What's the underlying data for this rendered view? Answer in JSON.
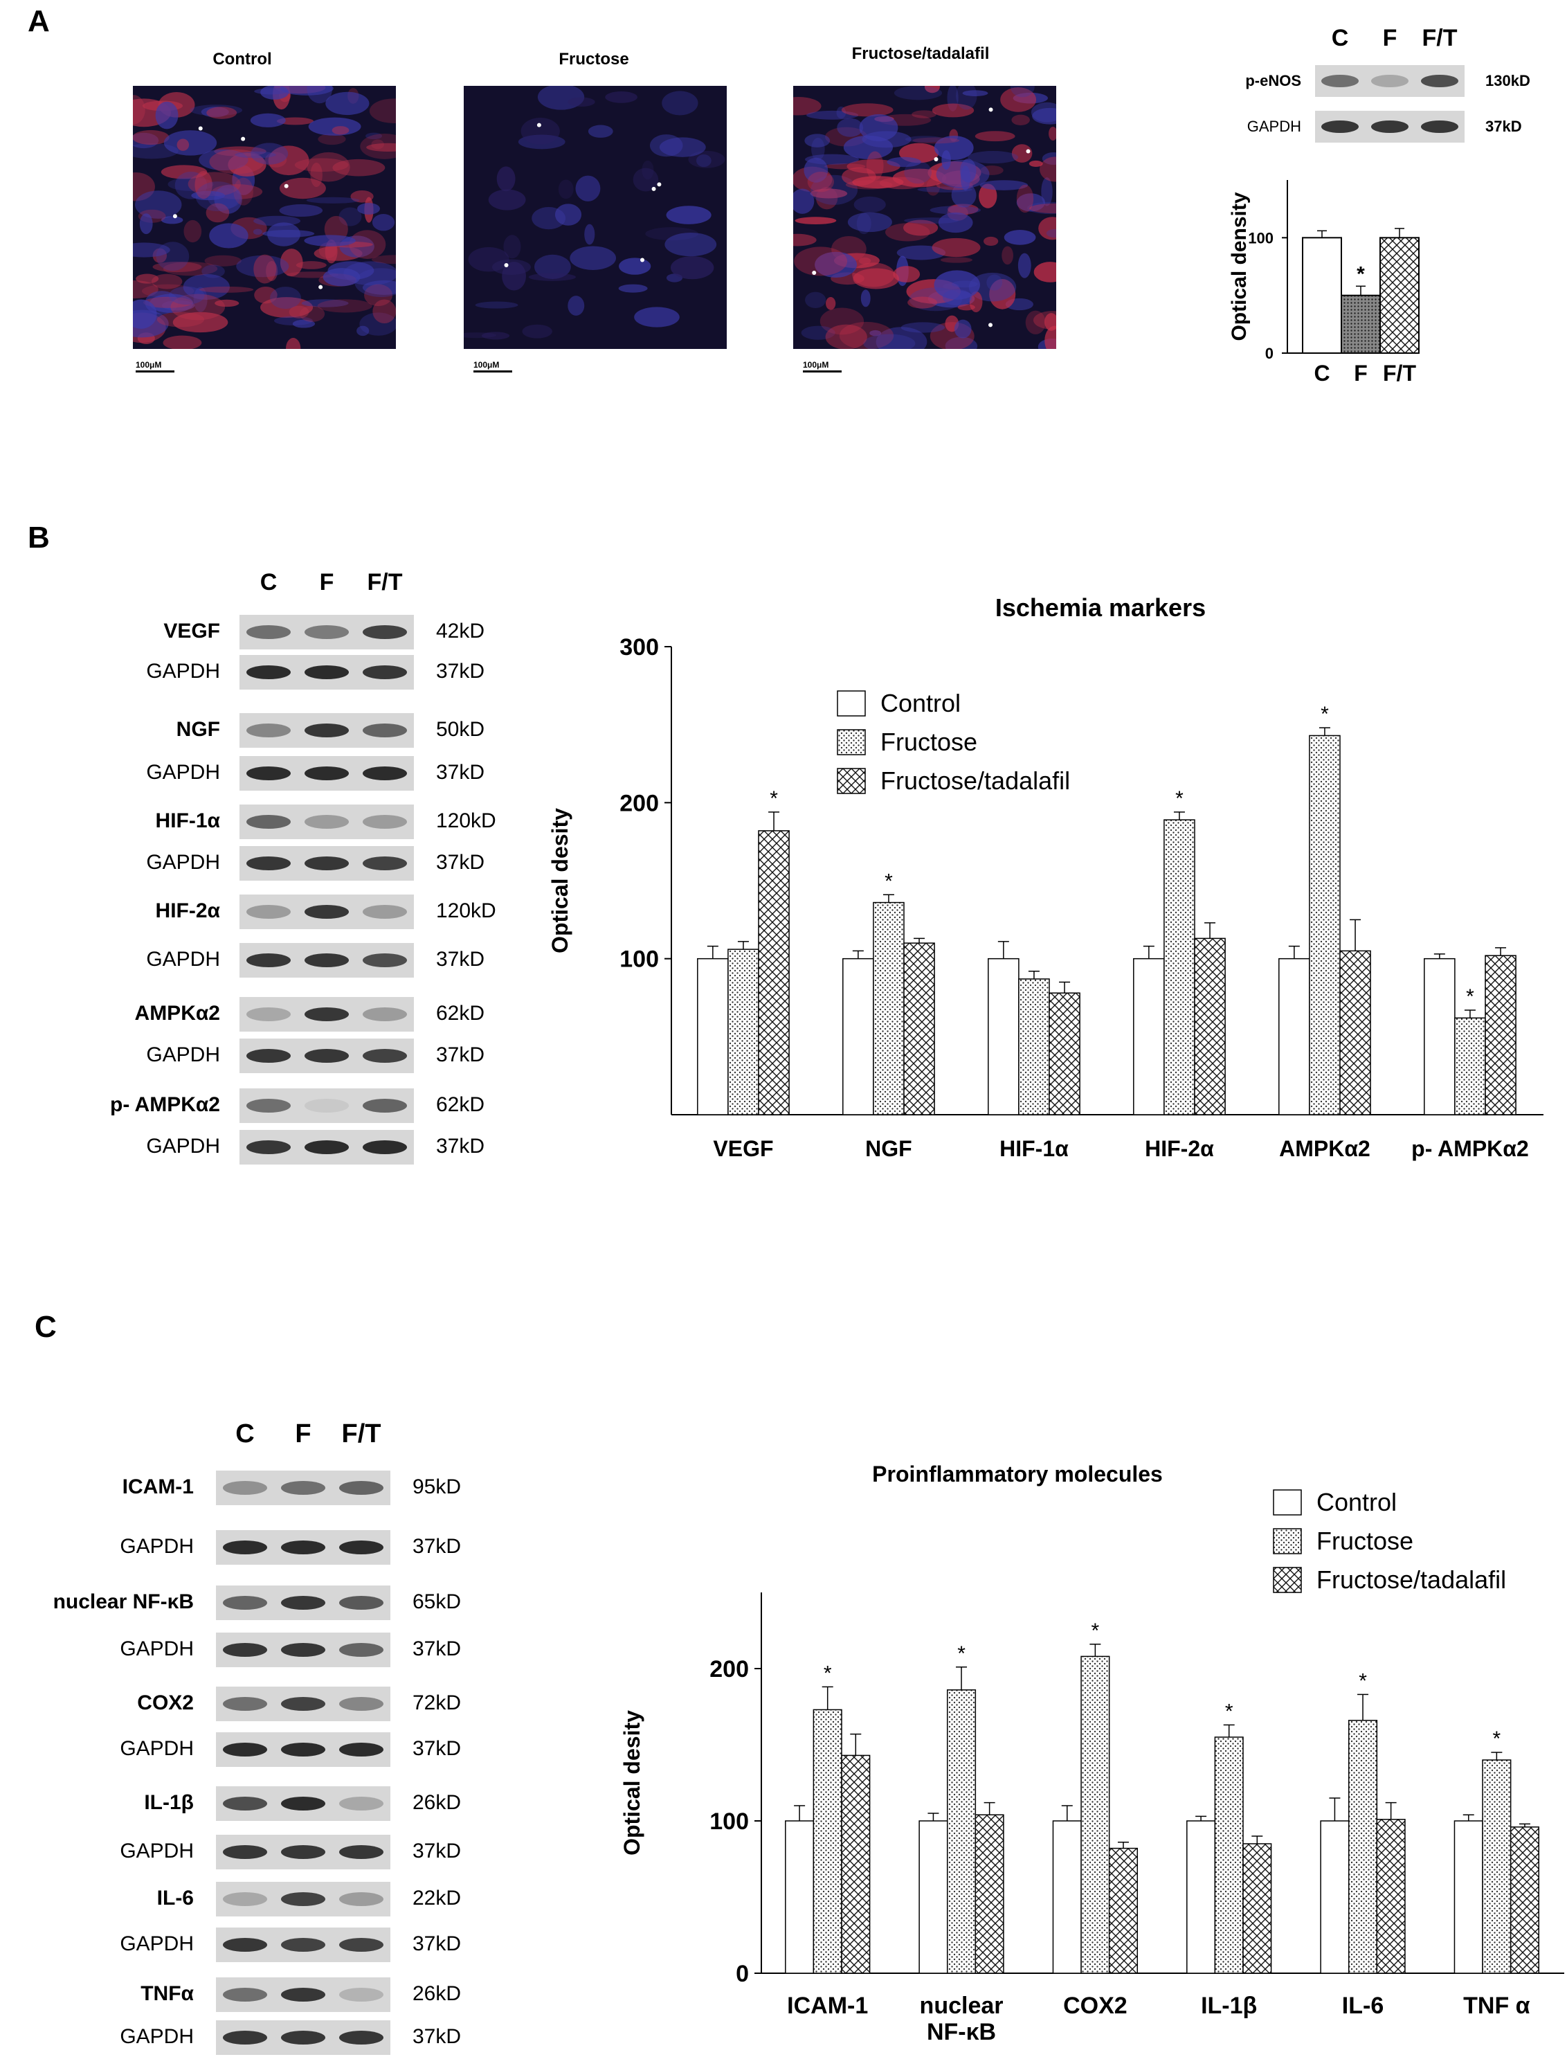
{
  "panel_a": {
    "letter": "A",
    "micrographs": [
      {
        "title": "Control",
        "scale": "100μM",
        "tint": "#b8304a"
      },
      {
        "title": "Fructose",
        "scale": "100μM",
        "tint": "#2a1f60"
      },
      {
        "title": "Fructose/tadalafil",
        "scale": "100μM",
        "tint": "#c8304a"
      }
    ],
    "blot": {
      "lanes": [
        "C",
        "F",
        "F/T"
      ],
      "rows": [
        {
          "label": "p-eNOS",
          "size": "130kD",
          "intensity": [
            0.55,
            0.3,
            0.7
          ]
        },
        {
          "label": "GAPDH",
          "size": "37kD",
          "intensity": [
            0.8,
            0.8,
            0.8
          ]
        }
      ]
    }
  },
  "panel_b": {
    "letter": "B",
    "blot": {
      "lanes": [
        "C",
        "F",
        "F/T"
      ],
      "rows": [
        {
          "label": "VEGF",
          "bold": true,
          "size": "42kD",
          "intensity": [
            0.55,
            0.5,
            0.75
          ]
        },
        {
          "label": "GAPDH",
          "bold": false,
          "size": "37kD",
          "intensity": [
            0.85,
            0.85,
            0.8
          ]
        },
        {
          "label": "NGF",
          "bold": true,
          "size": "50kD",
          "intensity": [
            0.45,
            0.8,
            0.6
          ]
        },
        {
          "label": "GAPDH",
          "bold": false,
          "size": "37kD",
          "intensity": [
            0.85,
            0.85,
            0.85
          ]
        },
        {
          "label": "HIF-1α",
          "bold": true,
          "size": "120kD",
          "intensity": [
            0.6,
            0.35,
            0.35
          ]
        },
        {
          "label": "GAPDH",
          "bold": false,
          "size": "37kD",
          "intensity": [
            0.8,
            0.8,
            0.75
          ]
        },
        {
          "label": "HIF-2α",
          "bold": true,
          "size": "120kD",
          "intensity": [
            0.35,
            0.8,
            0.35
          ]
        },
        {
          "label": "GAPDH",
          "bold": false,
          "size": "37kD",
          "intensity": [
            0.8,
            0.8,
            0.7
          ]
        },
        {
          "label": "AMPKα2",
          "bold": true,
          "size": "62kD",
          "intensity": [
            0.3,
            0.8,
            0.35
          ]
        },
        {
          "label": "GAPDH",
          "bold": false,
          "size": "37kD",
          "intensity": [
            0.8,
            0.8,
            0.75
          ]
        },
        {
          "label": "p- AMPKα2",
          "bold": true,
          "size": "62kD",
          "intensity": [
            0.55,
            0.15,
            0.6
          ]
        },
        {
          "label": "GAPDH",
          "bold": false,
          "size": "37kD",
          "intensity": [
            0.8,
            0.85,
            0.85
          ]
        }
      ]
    }
  },
  "panel_c": {
    "letter": "C",
    "blot": {
      "lanes": [
        "C",
        "F",
        "F/T"
      ],
      "rows": [
        {
          "label": "ICAM-1",
          "bold": true,
          "size": "95kD",
          "intensity": [
            0.4,
            0.55,
            0.6
          ]
        },
        {
          "label": "GAPDH",
          "bold": false,
          "size": "37kD",
          "intensity": [
            0.85,
            0.85,
            0.85
          ]
        },
        {
          "label": "nuclear NF-κB",
          "bold": true,
          "size": "65kD",
          "intensity": [
            0.6,
            0.8,
            0.65
          ]
        },
        {
          "label": "GAPDH",
          "bold": false,
          "size": "37kD",
          "intensity": [
            0.8,
            0.8,
            0.6
          ]
        },
        {
          "label": "COX2",
          "bold": true,
          "size": "72kD",
          "intensity": [
            0.55,
            0.75,
            0.45
          ]
        },
        {
          "label": "GAPDH",
          "bold": false,
          "size": "37kD",
          "intensity": [
            0.85,
            0.85,
            0.85
          ]
        },
        {
          "label": "IL-1β",
          "bold": true,
          "size": "26kD",
          "intensity": [
            0.7,
            0.85,
            0.3
          ]
        },
        {
          "label": "GAPDH",
          "bold": false,
          "size": "37kD",
          "intensity": [
            0.8,
            0.8,
            0.8
          ]
        },
        {
          "label": "IL-6",
          "bold": true,
          "size": "22kD",
          "intensity": [
            0.3,
            0.75,
            0.35
          ]
        },
        {
          "label": "GAPDH",
          "bold": false,
          "size": "37kD",
          "intensity": [
            0.8,
            0.75,
            0.75
          ]
        },
        {
          "label": "TNFα",
          "bold": true,
          "size": "26kD",
          "intensity": [
            0.55,
            0.8,
            0.25
          ]
        },
        {
          "label": "GAPDH",
          "bold": false,
          "size": "37kD",
          "intensity": [
            0.8,
            0.8,
            0.8
          ]
        }
      ]
    }
  },
  "chart_data": [
    {
      "type": "bar",
      "categories": [
        "C",
        "F",
        "F/T"
      ],
      "values": [
        100,
        50,
        100
      ],
      "errors": [
        6,
        8,
        8
      ],
      "significant": [
        false,
        true,
        false
      ],
      "ylabel": "Optical density",
      "ylim": [
        0,
        150
      ],
      "yticks": [
        0,
        100
      ],
      "fills": [
        "white",
        "dense-dots",
        "crosshatch"
      ]
    },
    {
      "type": "bar",
      "title": "Ischemia markers",
      "categories": [
        "VEGF",
        "NGF",
        "HIF-1α",
        "HIF-2α",
        "AMPKα2",
        "p- AMPKα2"
      ],
      "series": [
        {
          "name": "Control",
          "fill": "white",
          "values": [
            100,
            100,
            100,
            100,
            100,
            100
          ],
          "errors": [
            8,
            5,
            11,
            8,
            8,
            3
          ],
          "significant": [
            false,
            false,
            false,
            false,
            false,
            false
          ]
        },
        {
          "name": "Fructose",
          "fill": "dots",
          "values": [
            106,
            136,
            87,
            189,
            243,
            62
          ],
          "errors": [
            5,
            5,
            5,
            5,
            5,
            5
          ],
          "significant": [
            false,
            true,
            false,
            true,
            true,
            true
          ]
        },
        {
          "name": "Fructose/tadalafil",
          "fill": "crosshatch",
          "values": [
            182,
            110,
            78,
            113,
            105,
            102
          ],
          "errors": [
            12,
            3,
            7,
            10,
            20,
            5
          ],
          "significant": [
            true,
            false,
            false,
            false,
            false,
            false
          ]
        }
      ],
      "ylabel": "Optical desity",
      "ylim": [
        0,
        300
      ],
      "yticks": [
        100,
        200,
        300
      ],
      "legend": "top-center"
    },
    {
      "type": "bar",
      "title": "Proinflammatory molecules",
      "categories": [
        "ICAM-1",
        "nuclear NF-κB",
        "COX2",
        "IL-1β",
        "IL-6",
        "TNF α"
      ],
      "series": [
        {
          "name": "Control",
          "fill": "white",
          "values": [
            100,
            100,
            100,
            100,
            100,
            100
          ],
          "errors": [
            10,
            5,
            10,
            3,
            15,
            4
          ],
          "significant": [
            false,
            false,
            false,
            false,
            false,
            false
          ]
        },
        {
          "name": "Fructose",
          "fill": "dots",
          "values": [
            173,
            186,
            208,
            155,
            166,
            140
          ],
          "errors": [
            15,
            15,
            8,
            8,
            17,
            5
          ],
          "significant": [
            true,
            true,
            true,
            true,
            true,
            true
          ]
        },
        {
          "name": "Fructose/tadalafil",
          "fill": "crosshatch",
          "values": [
            143,
            104,
            82,
            85,
            101,
            96
          ],
          "errors": [
            14,
            8,
            4,
            5,
            11,
            2
          ],
          "significant": [
            false,
            false,
            false,
            false,
            false,
            false
          ]
        }
      ],
      "ylabel": "Optical desity",
      "ylim": [
        0,
        250
      ],
      "yticks": [
        0,
        100,
        200
      ],
      "legend": "top-right"
    }
  ],
  "marks": {
    "significance": "*"
  }
}
